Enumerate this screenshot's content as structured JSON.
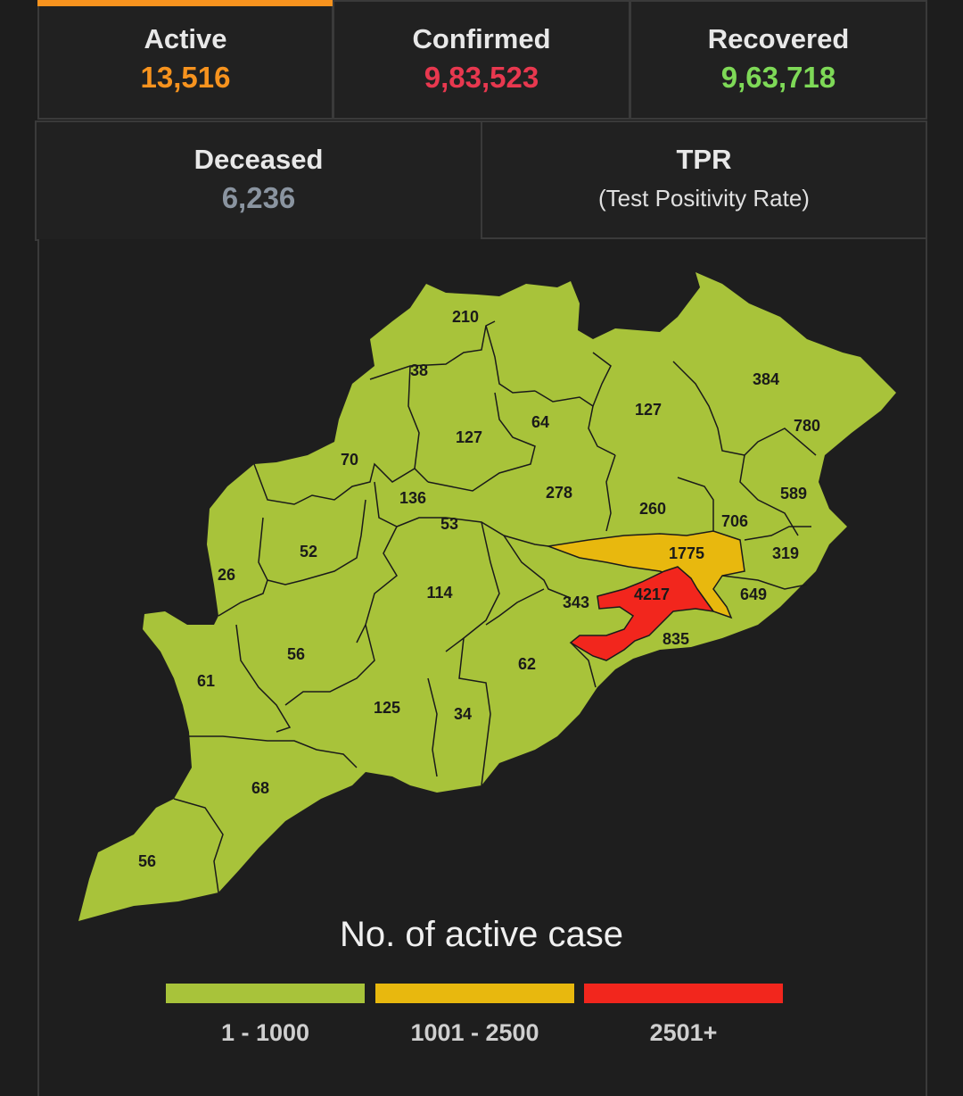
{
  "stats": {
    "active": {
      "label": "Active",
      "value": "13,516",
      "color": "#f7931e"
    },
    "confirmed": {
      "label": "Confirmed",
      "value": "9,83,523",
      "color": "#e8384f"
    },
    "recovered": {
      "label": "Recovered",
      "value": "9,63,718",
      "color": "#7ed957"
    },
    "deceased": {
      "label": "Deceased",
      "value": "6,236",
      "color": "#8a94a0"
    },
    "tpr": {
      "label": "TPR",
      "sub": "(Test Positivity Rate)"
    }
  },
  "map": {
    "legend_title": "No. of active case",
    "legend": [
      {
        "range": "1 - 1000",
        "color": "#a8c33a"
      },
      {
        "range": "1001 - 2500",
        "color": "#e8b80e"
      },
      {
        "range": "2501+",
        "color": "#f2261d"
      }
    ],
    "districts": [
      {
        "value": "210",
        "band": 0
      },
      {
        "value": "38",
        "band": 0
      },
      {
        "value": "127",
        "band": 0
      },
      {
        "value": "64",
        "band": 0
      },
      {
        "value": "127",
        "band": 0
      },
      {
        "value": "384",
        "band": 0
      },
      {
        "value": "780",
        "band": 0
      },
      {
        "value": "70",
        "band": 0
      },
      {
        "value": "136",
        "band": 0
      },
      {
        "value": "53",
        "band": 0
      },
      {
        "value": "278",
        "band": 0
      },
      {
        "value": "260",
        "band": 0
      },
      {
        "value": "706",
        "band": 0
      },
      {
        "value": "589",
        "band": 0
      },
      {
        "value": "52",
        "band": 0
      },
      {
        "value": "26",
        "band": 0
      },
      {
        "value": "1775",
        "band": 1
      },
      {
        "value": "319",
        "band": 0
      },
      {
        "value": "114",
        "band": 0
      },
      {
        "value": "343",
        "band": 0
      },
      {
        "value": "4217",
        "band": 2
      },
      {
        "value": "649",
        "band": 0
      },
      {
        "value": "835",
        "band": 0
      },
      {
        "value": "56",
        "band": 0
      },
      {
        "value": "62",
        "band": 0
      },
      {
        "value": "61",
        "band": 0
      },
      {
        "value": "125",
        "band": 0
      },
      {
        "value": "34",
        "band": 0
      },
      {
        "value": "68",
        "band": 0
      },
      {
        "value": "56",
        "band": 0
      }
    ]
  }
}
